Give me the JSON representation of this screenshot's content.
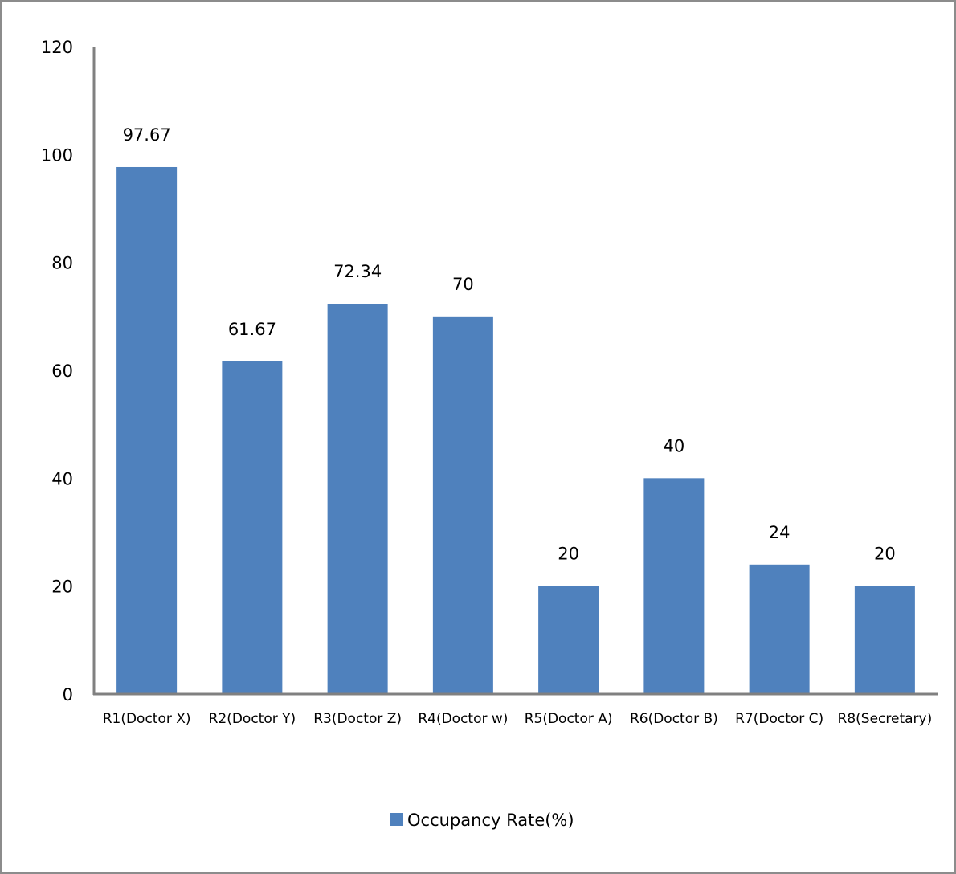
{
  "chart_data": {
    "type": "bar",
    "title": "",
    "xlabel": "",
    "ylabel": "",
    "categories": [
      "R1(Doctor X)",
      "R2(Doctor Y)",
      "R3(Doctor Z)",
      "R4(Doctor w)",
      "R5(Doctor A)",
      "R6(Doctor B)",
      "R7(Doctor C)",
      "R8(Secretary)"
    ],
    "series": [
      {
        "name": "Occupancy Rate(%)",
        "values": [
          97.67,
          61.67,
          72.34,
          70,
          20,
          40,
          24,
          20
        ],
        "labels": [
          "97.67",
          "61.67",
          "72.34",
          "70",
          "20",
          "40",
          "24",
          "20"
        ],
        "color": "#4f81bd"
      }
    ],
    "ylim": [
      0,
      120
    ],
    "yticks": [
      0,
      20,
      40,
      60,
      80,
      100,
      120
    ],
    "grid": false,
    "legend": "bottom",
    "axis_color": "#808080"
  }
}
